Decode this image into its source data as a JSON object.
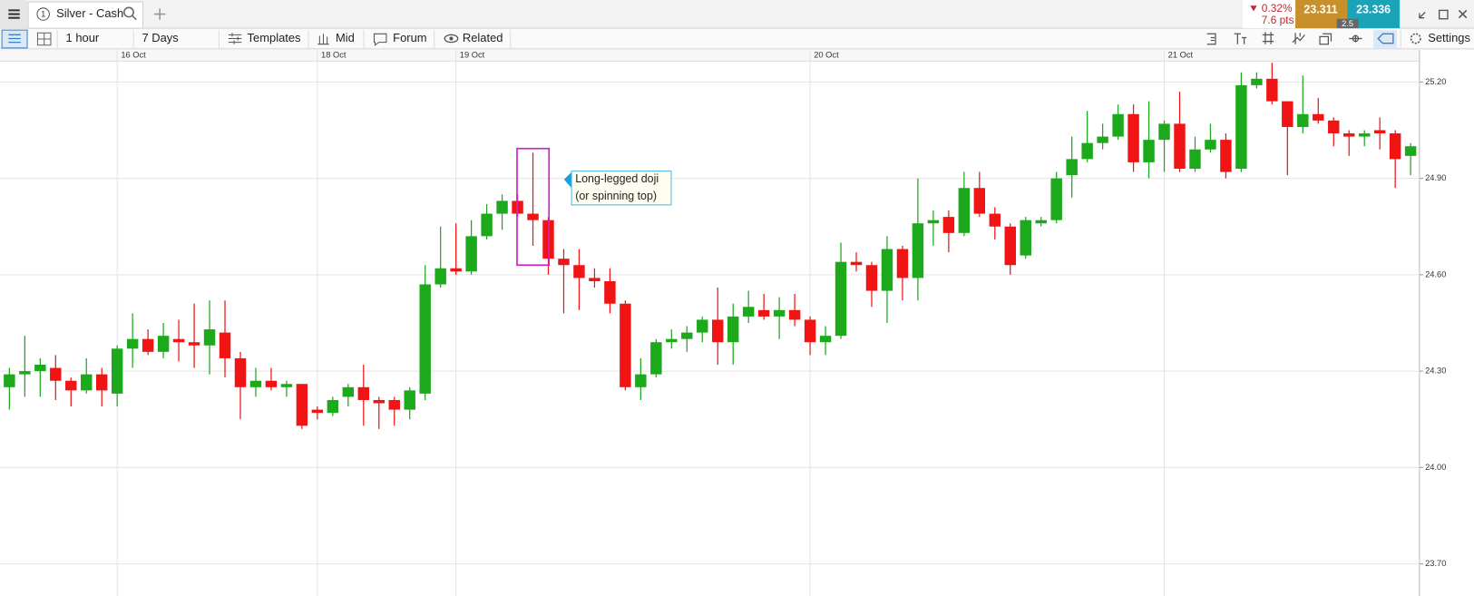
{
  "ui": {
    "tab_number": "1",
    "tab_title": "Silver - Cash",
    "toolbar": [
      "1 hour",
      "7 Days",
      "Templates",
      "Mid",
      "Forum",
      "Related"
    ],
    "settings": "Settings",
    "change_pct": "0.32%",
    "change_pts": "7.6 pts",
    "sell": "23.311",
    "spread": "2.5",
    "buy": "23.336"
  },
  "chart_data": {
    "type": "candlestick",
    "annotation": [
      "Long-legged doji",
      "(or spinning top)"
    ],
    "categories": [
      null,
      null,
      null,
      null,
      null,
      null,
      null,
      "16 Oct",
      null,
      null,
      null,
      null,
      null,
      null,
      null,
      null,
      null,
      null,
      null,
      null,
      "18 Oct",
      null,
      null,
      null,
      null,
      null,
      null,
      null,
      null,
      "19 Oct",
      null,
      null,
      null,
      null,
      null,
      null,
      null,
      null,
      null,
      null,
      null,
      null,
      null,
      null,
      null,
      null,
      null,
      null,
      null,
      null,
      null,
      null,
      "20 Oct",
      null,
      null,
      null,
      null,
      null,
      null,
      null,
      null,
      null,
      null,
      null,
      null,
      null,
      null,
      null,
      null,
      null,
      null,
      null,
      null,
      null,
      null,
      "21 Oct",
      null,
      null,
      null,
      null,
      null,
      null,
      null,
      null,
      null,
      null,
      null,
      null,
      null,
      null,
      null,
      null
    ],
    "open": [
      24.25,
      24.29,
      24.3,
      24.31,
      24.27,
      24.24,
      24.29,
      24.23,
      24.37,
      24.4,
      24.36,
      24.4,
      24.39,
      24.38,
      24.42,
      24.34,
      24.25,
      24.27,
      24.25,
      24.26,
      24.18,
      24.17,
      24.22,
      24.25,
      24.21,
      24.21,
      24.18,
      24.23,
      24.57,
      24.62,
      24.61,
      24.72,
      24.79,
      24.83,
      24.79,
      24.77,
      24.65,
      24.63,
      24.59,
      24.58,
      24.51,
      24.25,
      24.29,
      24.39,
      24.4,
      24.42,
      24.46,
      24.39,
      24.47,
      24.49,
      24.47,
      24.49,
      24.46,
      24.39,
      24.41,
      24.64,
      24.63,
      24.55,
      24.68,
      24.59,
      24.76,
      24.78,
      24.73,
      24.87,
      24.79,
      24.75,
      24.66,
      24.76,
      24.77,
      24.91,
      24.96,
      25.01,
      25.03,
      25.1,
      24.95,
      25.02,
      25.07,
      24.93,
      24.99,
      25.02,
      24.93,
      25.19,
      25.21,
      25.14,
      25.06,
      25.1,
      25.08,
      25.04,
      25.03,
      25.05,
      25.04,
      24.97
    ],
    "high": [
      24.31,
      24.41,
      24.34,
      24.35,
      24.28,
      24.34,
      24.31,
      24.38,
      24.48,
      24.43,
      24.45,
      24.46,
      24.51,
      24.52,
      24.52,
      24.36,
      24.31,
      24.31,
      24.27,
      24.26,
      24.19,
      24.22,
      24.26,
      24.32,
      24.22,
      24.22,
      24.25,
      24.63,
      24.75,
      24.76,
      24.77,
      24.82,
      24.85,
      24.85,
      24.98,
      24.78,
      24.68,
      24.68,
      24.62,
      24.62,
      24.52,
      24.34,
      24.4,
      24.43,
      24.44,
      24.47,
      24.56,
      24.51,
      24.55,
      24.54,
      24.53,
      24.54,
      24.47,
      24.44,
      24.7,
      24.67,
      24.64,
      24.72,
      24.69,
      24.9,
      24.8,
      24.8,
      24.92,
      24.92,
      24.81,
      24.76,
      24.78,
      24.78,
      24.92,
      25.03,
      25.11,
      25.07,
      25.13,
      25.13,
      25.14,
      25.08,
      25.17,
      25.03,
      25.07,
      25.04,
      25.23,
      25.23,
      25.26,
      25.14,
      25.22,
      25.15,
      25.09,
      25.05,
      25.05,
      25.09,
      25.05,
      25.01
    ],
    "low": [
      24.18,
      24.22,
      24.22,
      24.21,
      24.19,
      24.23,
      24.19,
      24.19,
      24.31,
      24.35,
      24.34,
      24.33,
      24.31,
      24.29,
      24.28,
      24.15,
      24.22,
      24.24,
      24.22,
      24.12,
      24.15,
      24.16,
      24.19,
      24.13,
      24.12,
      24.13,
      24.15,
      24.21,
      24.56,
      24.6,
      24.6,
      24.71,
      24.74,
      24.78,
      24.69,
      24.6,
      24.48,
      24.49,
      24.56,
      24.48,
      24.24,
      24.21,
      24.28,
      24.37,
      24.36,
      24.39,
      24.32,
      24.32,
      24.45,
      24.46,
      24.4,
      24.44,
      24.35,
      24.35,
      24.4,
      24.61,
      24.5,
      24.45,
      24.52,
      24.52,
      24.69,
      24.67,
      24.72,
      24.78,
      24.71,
      24.6,
      24.65,
      24.75,
      24.76,
      24.84,
      24.95,
      24.99,
      25.02,
      24.92,
      24.9,
      24.92,
      24.92,
      24.92,
      24.98,
      24.9,
      24.92,
      25.18,
      25.13,
      24.91,
      25.04,
      25.07,
      25.0,
      24.97,
      25.0,
      24.99,
      24.87,
      24.91
    ],
    "close": [
      24.29,
      24.3,
      24.32,
      24.27,
      24.24,
      24.29,
      24.24,
      24.37,
      24.4,
      24.36,
      24.41,
      24.39,
      24.38,
      24.43,
      24.34,
      24.25,
      24.27,
      24.25,
      24.26,
      24.13,
      24.17,
      24.21,
      24.25,
      24.21,
      24.2,
      24.18,
      24.24,
      24.57,
      24.62,
      24.61,
      24.72,
      24.79,
      24.83,
      24.79,
      24.77,
      24.65,
      24.63,
      24.59,
      24.58,
      24.51,
      24.25,
      24.29,
      24.39,
      24.4,
      24.42,
      24.46,
      24.39,
      24.47,
      24.5,
      24.47,
      24.49,
      24.46,
      24.39,
      24.41,
      24.64,
      24.63,
      24.55,
      24.68,
      24.59,
      24.76,
      24.77,
      24.73,
      24.87,
      24.79,
      24.75,
      24.63,
      24.77,
      24.77,
      24.9,
      24.96,
      25.01,
      25.03,
      25.1,
      24.95,
      25.02,
      25.07,
      24.93,
      24.99,
      25.02,
      24.92,
      25.19,
      25.21,
      25.14,
      25.06,
      25.1,
      25.08,
      25.04,
      25.03,
      25.04,
      25.04,
      24.96,
      25.0
    ],
    "up_color": "#1ca91c",
    "down_color": "#f01414",
    "ylim": [
      23.6,
      25.265
    ],
    "yticks": [
      {
        "value": 23.7,
        "label": "23.70"
      },
      {
        "value": 24.0,
        "label": "24.00"
      },
      {
        "value": 24.3,
        "label": "24.30"
      },
      {
        "value": 24.6,
        "label": "24.60"
      },
      {
        "value": 24.9,
        "label": "24.90"
      },
      {
        "value": 25.2,
        "label": "25.20"
      }
    ],
    "grid": true
  }
}
